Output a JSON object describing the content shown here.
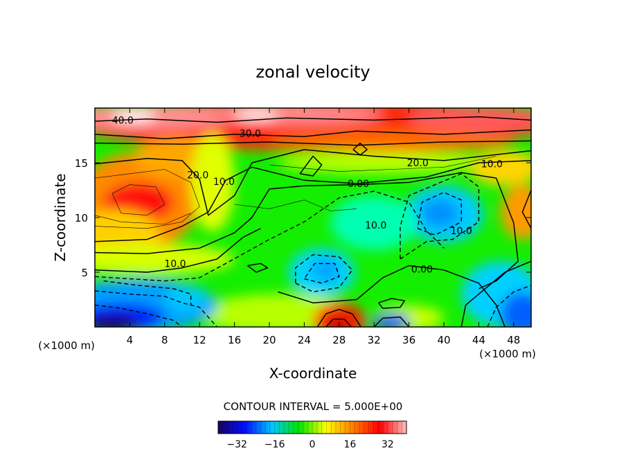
{
  "chart_data": {
    "type": "contour",
    "title": "zonal velocity",
    "xlabel": "X-coordinate",
    "ylabel": "Z-coordinate",
    "x_unit": "(×1000 m)",
    "z_unit": "(×1000 m)",
    "xlim": [
      0,
      50
    ],
    "ylim": [
      0,
      20
    ],
    "x_ticks": [
      4,
      8,
      12,
      16,
      20,
      24,
      28,
      32,
      36,
      40,
      44,
      48
    ],
    "y_ticks": [
      5,
      10,
      15
    ],
    "contour_interval_text": "CONTOUR INTERVAL = 5.000E+00",
    "contour_interval": 5,
    "negative_contours_dashed": true,
    "colorbar": {
      "range": [
        -40,
        40
      ],
      "tick_values": [
        -32,
        -16,
        0,
        16,
        32
      ],
      "colors": [
        "#1a0060",
        "#0010ff",
        "#00c8ff",
        "#00e600",
        "#ffff00",
        "#ff8000",
        "#ff0000",
        "#ffc0c0"
      ]
    },
    "contour_labels": [
      {
        "text": "40.0",
        "x": 3.2,
        "z": 18.9
      },
      {
        "text": "30.0",
        "x": 17.8,
        "z": 17.7
      },
      {
        "text": "20.0",
        "x": 11.8,
        "z": 13.9
      },
      {
        "text": "20.0",
        "x": 37.0,
        "z": 15.0
      },
      {
        "text": "10.0",
        "x": 45.5,
        "z": 14.9
      },
      {
        "text": "10.0",
        "x": 14.8,
        "z": 13.3
      },
      {
        "text": "0.00",
        "x": 30.2,
        "z": 13.1
      },
      {
        "text": "10.0",
        "x": 32.2,
        "z": 9.3
      },
      {
        "text": "10.0",
        "x": 42.0,
        "z": 8.8
      },
      {
        "text": "10.0",
        "x": 9.2,
        "z": 5.8
      },
      {
        "text": "0.00",
        "x": 37.5,
        "z": 5.3
      }
    ]
  }
}
